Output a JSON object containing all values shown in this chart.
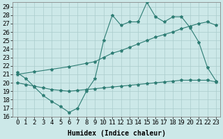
{
  "line1_x": [
    0,
    1,
    2,
    3,
    4,
    5,
    6,
    7,
    8,
    9,
    10,
    11,
    12,
    13,
    14,
    15,
    16,
    17,
    18,
    19,
    20,
    21,
    22,
    23
  ],
  "line1_y": [
    21.2,
    20.5,
    19.5,
    18.5,
    17.8,
    17.2,
    16.5,
    17.0,
    19.0,
    20.5,
    25.0,
    28.0,
    26.8,
    27.2,
    27.2,
    29.5,
    27.8,
    27.2,
    27.8,
    27.8,
    26.5,
    24.8,
    21.8,
    20.2
  ],
  "line2_x": [
    0,
    2,
    4,
    6,
    8,
    9,
    10,
    11,
    12,
    13,
    14,
    15,
    16,
    17,
    18,
    19,
    20,
    21,
    22,
    23
  ],
  "line2_y": [
    21.0,
    21.3,
    21.6,
    21.9,
    22.3,
    22.5,
    23.0,
    23.5,
    23.8,
    24.2,
    24.6,
    25.0,
    25.4,
    25.7,
    26.0,
    26.4,
    26.7,
    27.0,
    27.2,
    26.8
  ],
  "line3_x": [
    0,
    1,
    2,
    3,
    4,
    5,
    6,
    7,
    8,
    9,
    10,
    11,
    12,
    13,
    14,
    15,
    16,
    17,
    18,
    19,
    20,
    21,
    22,
    23
  ],
  "line3_y": [
    20.0,
    19.8,
    19.6,
    19.4,
    19.2,
    19.1,
    19.0,
    19.1,
    19.2,
    19.3,
    19.4,
    19.5,
    19.6,
    19.7,
    19.8,
    19.9,
    20.0,
    20.1,
    20.2,
    20.3,
    20.3,
    20.3,
    20.3,
    20.1
  ],
  "color": "#2e7d74",
  "bg_color": "#cce8e8",
  "grid_color": "#aacccc",
  "xlabel": "Humidex (Indice chaleur)",
  "ylim": [
    16,
    29.5
  ],
  "xlim": [
    -0.5,
    23.5
  ],
  "yticks": [
    16,
    17,
    18,
    19,
    20,
    21,
    22,
    23,
    24,
    25,
    26,
    27,
    28,
    29
  ],
  "xticks": [
    0,
    1,
    2,
    3,
    4,
    5,
    6,
    7,
    8,
    9,
    10,
    11,
    12,
    13,
    14,
    15,
    16,
    17,
    18,
    19,
    20,
    21,
    22,
    23
  ],
  "xtick_labels": [
    "0",
    "1",
    "2",
    "3",
    "4",
    "5",
    "6",
    "7",
    "8",
    "9",
    "10",
    "11",
    "12",
    "13",
    "14",
    "15",
    "16",
    "17",
    "18",
    "19",
    "20",
    "21",
    "22",
    "23"
  ],
  "marker": "*",
  "marker_size": 3,
  "linewidth": 0.8,
  "font_size": 6.5,
  "label_fontsize": 7
}
